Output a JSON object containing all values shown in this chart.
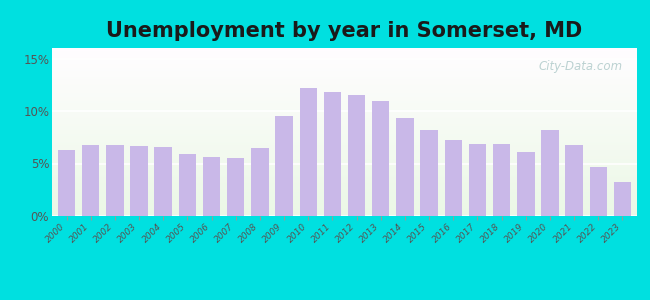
{
  "title": "Unemployment by year in Somerset, MD",
  "years": [
    2000,
    2001,
    2002,
    2003,
    2004,
    2005,
    2006,
    2007,
    2008,
    2009,
    2010,
    2011,
    2012,
    2013,
    2014,
    2015,
    2016,
    2017,
    2018,
    2019,
    2020,
    2021,
    2022,
    2023
  ],
  "values": [
    6.3,
    6.8,
    6.8,
    6.7,
    6.6,
    5.9,
    5.6,
    5.5,
    6.5,
    9.5,
    12.2,
    11.8,
    11.5,
    11.0,
    9.3,
    8.2,
    7.2,
    6.9,
    6.9,
    6.1,
    8.2,
    6.8,
    4.7,
    3.2
  ],
  "bar_color": "#c9b8e8",
  "yticks": [
    0,
    5,
    10,
    15
  ],
  "ytick_labels": [
    "0%",
    "5%",
    "10%",
    "15%"
  ],
  "ylim": [
    0,
    16
  ],
  "title_fontsize": 15,
  "bg_outer": "#00e0e0",
  "watermark": "City-Data.com",
  "watermark_icon": "©"
}
